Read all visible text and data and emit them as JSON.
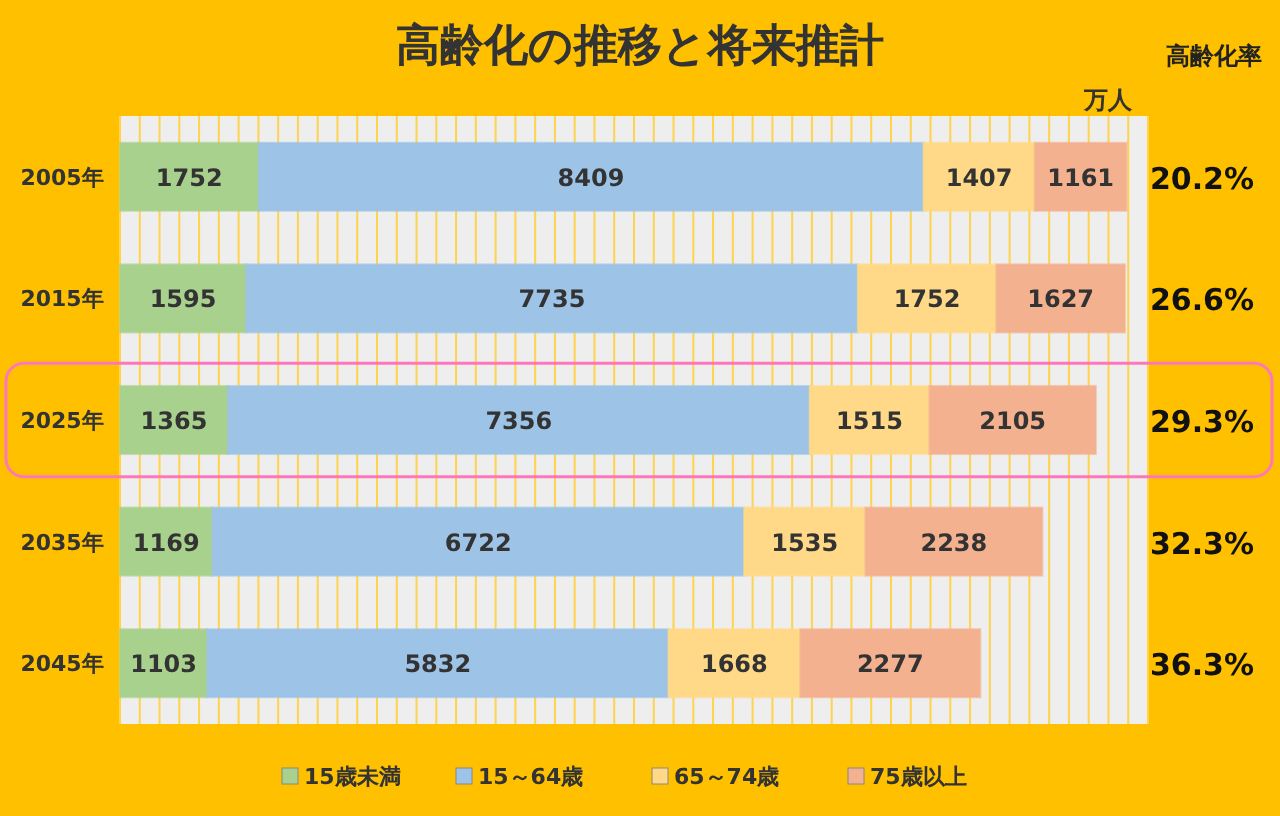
{
  "chart_data": {
    "type": "bar",
    "orientation": "horizontal",
    "stacked": true,
    "title": "高齢化の推移と将来推計",
    "categories": [
      "2005年",
      "2015年",
      "2025年",
      "2035年",
      "2045年"
    ],
    "series": [
      {
        "name": "15歳未満",
        "color": "#a9d18e",
        "values": [
          1752,
          1595,
          1365,
          1169,
          1103
        ]
      },
      {
        "name": "15～64歳",
        "color": "#9dc3e6",
        "values": [
          8409,
          7735,
          7356,
          6722,
          5832
        ]
      },
      {
        "name": "65～74歳",
        "color": "#ffd987",
        "values": [
          1407,
          1752,
          1515,
          1535,
          1668
        ]
      },
      {
        "name": "75歳以上",
        "color": "#f4b18f",
        "values": [
          1161,
          1627,
          2105,
          2238,
          2277
        ]
      }
    ],
    "xlim": [
      0,
      13000
    ],
    "xticks": [
      0,
      250,
      500,
      750,
      1000,
      1250,
      1500,
      1750,
      2000,
      2250,
      2500,
      2750,
      3000,
      3250,
      3500,
      3750,
      4000,
      4250,
      4500,
      4750,
      5000,
      5250,
      5500,
      5750,
      6000,
      6250,
      6500,
      6750,
      7000,
      7250,
      7500,
      7750,
      8000,
      8250,
      8500,
      8750,
      9000,
      9250,
      9500,
      9750,
      10000,
      10250,
      10500,
      10750,
      11000,
      11250,
      11500,
      11750,
      12000,
      12250,
      12500,
      12750,
      13000
    ],
    "tick_labels": "y",
    "grid": "x",
    "data_labels": true,
    "legend": "bottom",
    "annotations": [
      "万人",
      "高齢化率",
      "20.2%",
      "26.6%",
      "29.3%",
      "32.3%",
      "36.3%"
    ]
  }
}
